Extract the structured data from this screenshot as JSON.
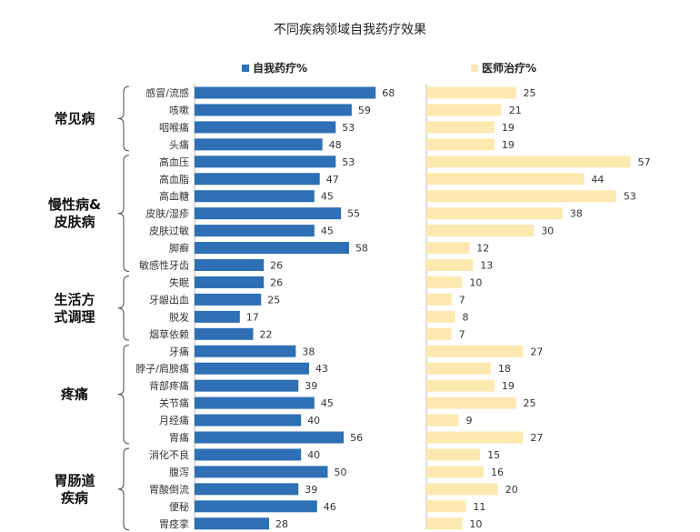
{
  "chart_data": {
    "type": "bar",
    "orientation": "horizontal",
    "title": "不同疾病领域自我药疗效果",
    "colors": {
      "self_medication": "#2e6fb5",
      "doctor_treatment": "#fde9b0"
    },
    "series": [
      {
        "name": "自我药疗%",
        "values": [
          68,
          59,
          53,
          48,
          53,
          47,
          45,
          55,
          45,
          58,
          26,
          26,
          25,
          17,
          22,
          38,
          43,
          39,
          45,
          40,
          56,
          40,
          50,
          39,
          46,
          28
        ]
      },
      {
        "name": "医师治疗%",
        "values": [
          25,
          21,
          19,
          19,
          57,
          44,
          53,
          38,
          30,
          12,
          13,
          10,
          7,
          8,
          7,
          27,
          18,
          19,
          25,
          9,
          27,
          15,
          16,
          20,
          11,
          10
        ]
      }
    ],
    "categories": [
      "感冒/流感",
      "咳嗽",
      "咽喉痛",
      "头痛",
      "高血压",
      "高血脂",
      "高血糖",
      "皮肤/湿疹",
      "皮肤过敏",
      "脚癣",
      "敏感性牙齿",
      "失眠",
      "牙龈出血",
      "脱发",
      "烟草依赖",
      "牙痛",
      "脖子/肩膀痛",
      "背部疼痛",
      "关节痛",
      "月经痛",
      "胃痛",
      "消化不良",
      "腹泻",
      "胃酸倒流",
      "便秘",
      "胃痉挛"
    ],
    "groups": [
      {
        "label_lines": [
          "常见病"
        ],
        "start": 0,
        "end": 3
      },
      {
        "label_lines": [
          "慢性病&",
          "皮肤病"
        ],
        "start": 4,
        "end": 10
      },
      {
        "label_lines": [
          "生活方",
          "式调理"
        ],
        "start": 11,
        "end": 14
      },
      {
        "label_lines": [
          "疼痛"
        ],
        "start": 15,
        "end": 20
      },
      {
        "label_lines": [
          "胃肠道",
          "疾病"
        ],
        "start": 21,
        "end": 25
      }
    ],
    "xlim": [
      0,
      100
    ]
  }
}
